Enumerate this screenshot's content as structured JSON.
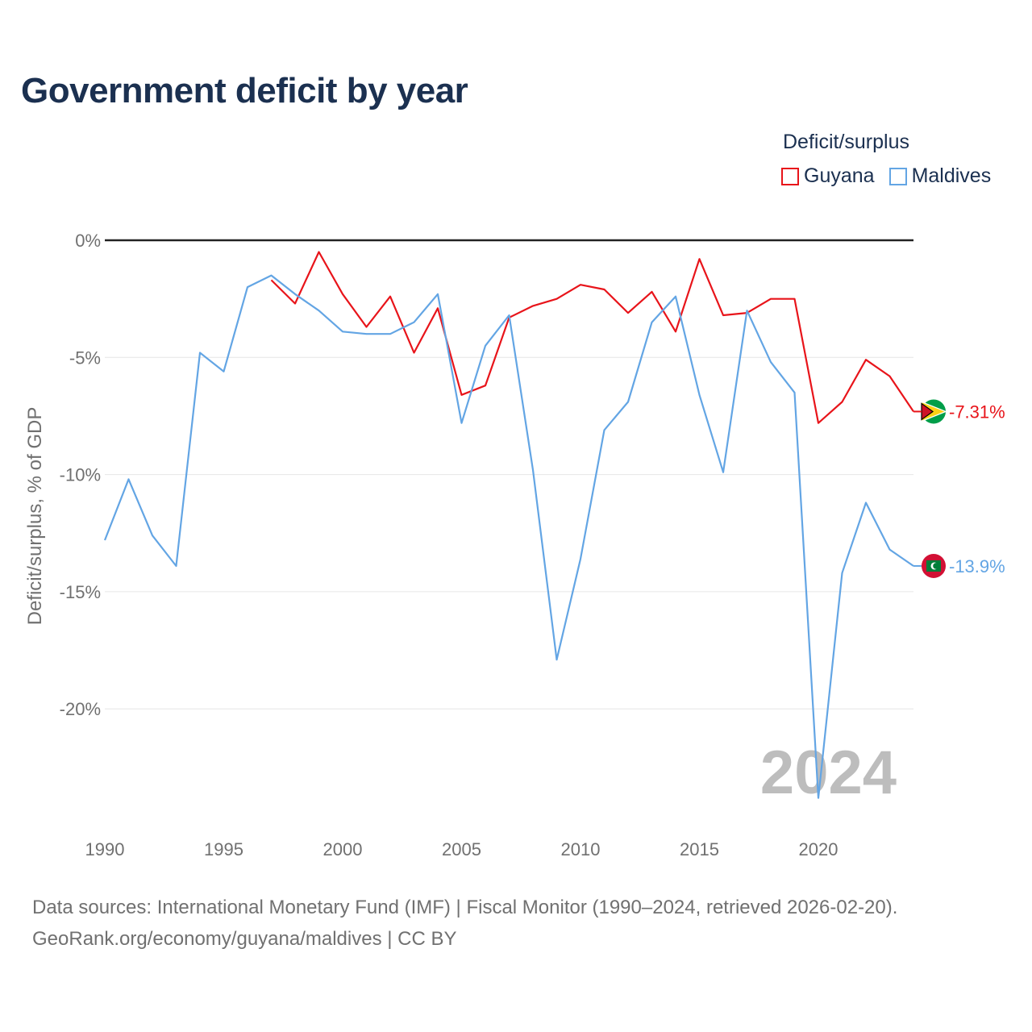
{
  "title": "Government deficit by year",
  "legend": {
    "title": "Deficit/surplus",
    "items": [
      {
        "name": "Guyana",
        "color": "#e8141a"
      },
      {
        "name": "Maldives",
        "color": "#63a5e4"
      }
    ]
  },
  "source": {
    "line1": "Data sources: International Monetary Fund (IMF) | Fiscal Monitor (1990–2024, retrieved 2026-02-20).",
    "line2": "GeoRank.org/economy/guyana/maldives | CC BY"
  },
  "chart_data": {
    "type": "line",
    "title": "Government deficit by year",
    "ylabel": "Deficit/surplus, % of GDP",
    "xlabel": "",
    "xlim": [
      1990,
      2024
    ],
    "ylim": [
      -24.5,
      0
    ],
    "x_ticks": [
      1990,
      1995,
      2000,
      2005,
      2010,
      2015,
      2020
    ],
    "y_ticks": [
      0,
      -5,
      -10,
      -15,
      -20
    ],
    "y_tick_labels": [
      "0%",
      "-5%",
      "-10%",
      "-15%",
      "-20%"
    ],
    "watermark": "2024",
    "series": [
      {
        "name": "Guyana",
        "color": "#e8141a",
        "x": [
          1997,
          1998,
          1999,
          2000,
          2001,
          2002,
          2003,
          2004,
          2005,
          2006,
          2007,
          2008,
          2009,
          2010,
          2011,
          2012,
          2013,
          2014,
          2015,
          2016,
          2017,
          2018,
          2019,
          2020,
          2021,
          2022,
          2023,
          2024
        ],
        "values": [
          -1.7,
          -2.7,
          -0.5,
          -2.3,
          -3.7,
          -2.4,
          -4.8,
          -2.9,
          -6.6,
          -6.2,
          -3.3,
          -2.8,
          -2.5,
          -1.9,
          -2.1,
          -3.1,
          -2.2,
          -3.9,
          -0.8,
          -3.2,
          -3.1,
          -2.5,
          -2.5,
          -7.8,
          -6.9,
          -5.1,
          -5.8,
          -7.31
        ],
        "end_label": "-7.31%"
      },
      {
        "name": "Maldives",
        "color": "#63a5e4",
        "x": [
          1990,
          1991,
          1992,
          1993,
          1994,
          1995,
          1996,
          1997,
          1998,
          1999,
          2000,
          2001,
          2002,
          2003,
          2004,
          2005,
          2006,
          2007,
          2008,
          2009,
          2010,
          2011,
          2012,
          2013,
          2014,
          2015,
          2016,
          2017,
          2018,
          2019,
          2020,
          2021,
          2022,
          2023,
          2024
        ],
        "values": [
          -12.8,
          -10.2,
          -12.6,
          -13.9,
          -4.8,
          -5.6,
          -2.0,
          -1.5,
          -2.3,
          -3.0,
          -3.9,
          -4.0,
          -4.0,
          -3.5,
          -2.3,
          -7.8,
          -4.5,
          -3.2,
          -9.8,
          -17.9,
          -13.6,
          -8.1,
          -6.9,
          -3.5,
          -2.4,
          -6.6,
          -9.9,
          -3.0,
          -5.2,
          -6.5,
          -23.8,
          -14.2,
          -11.2,
          -13.2,
          -13.9
        ],
        "end_label": "-13.9%"
      }
    ]
  }
}
